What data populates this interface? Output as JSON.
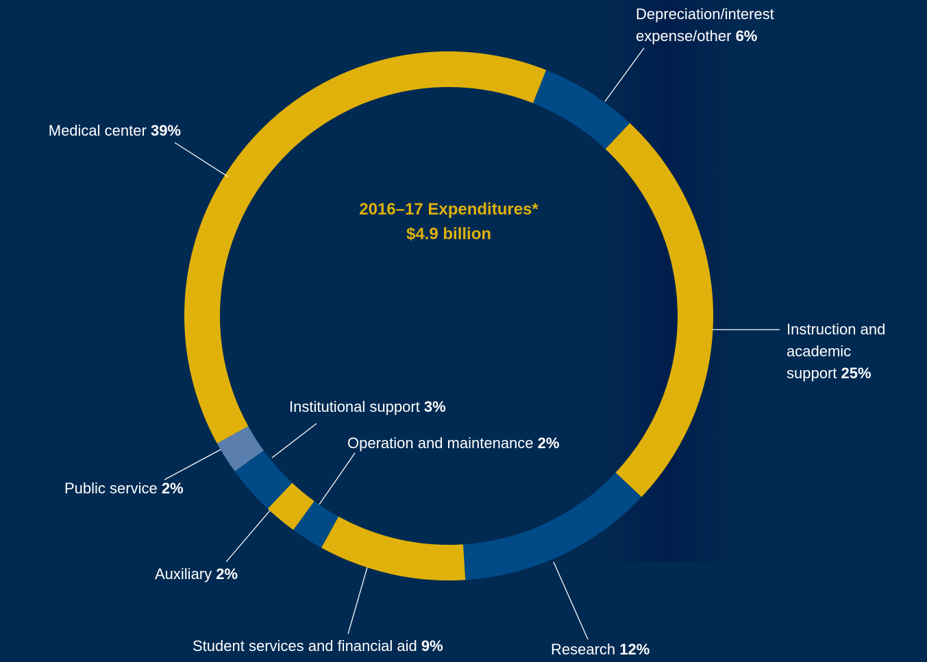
{
  "chart_data": {
    "type": "donut",
    "title": "2016–17 Expenditures*",
    "subtitle": "$4.9 billion",
    "categories": [
      "Depreciation/interest expense/other",
      "Instruction and academic support",
      "Research",
      "Student services and financial aid",
      "Operation and maintenance",
      "Auxiliary",
      "Institutional support",
      "Public service",
      "Medical center"
    ],
    "values": [
      6,
      25,
      12,
      9,
      2,
      2,
      3,
      2,
      39
    ],
    "value_labels": [
      "6%",
      "25%",
      "12%",
      "9%",
      "2%",
      "2%",
      "3%",
      "2%",
      "39%"
    ],
    "colors": [
      "#004a87",
      "#dfb10a",
      "#004a87",
      "#dfb10a",
      "#004a87",
      "#dfb10a",
      "#004a87",
      "#5a7fae",
      "#dfb10a"
    ]
  }
}
